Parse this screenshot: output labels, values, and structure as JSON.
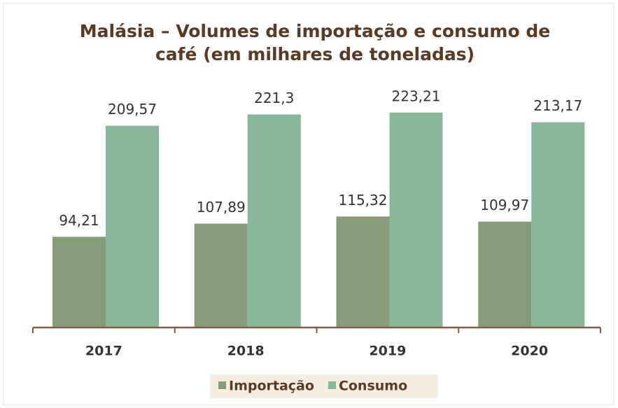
{
  "chart_data": {
    "type": "bar",
    "title": "Malásia – Volumes de importação e consumo de café (em milhares de toneladas)",
    "categories": [
      "2017",
      "2018",
      "2019",
      "2020"
    ],
    "series": [
      {
        "name": "Importação",
        "color": "#869c78",
        "values": [
          94.21,
          107.89,
          115.32,
          109.97
        ],
        "value_labels": [
          "94,21",
          "107,89",
          "115,32",
          "109,97"
        ]
      },
      {
        "name": "Consumo",
        "color": "#88b89a",
        "values": [
          209.57,
          221.3,
          223.21,
          213.17
        ],
        "value_labels": [
          "209,57",
          "221,3",
          "223,21",
          "213,17"
        ]
      }
    ],
    "ylim": [
      0,
      250
    ],
    "legend": "bottom"
  }
}
